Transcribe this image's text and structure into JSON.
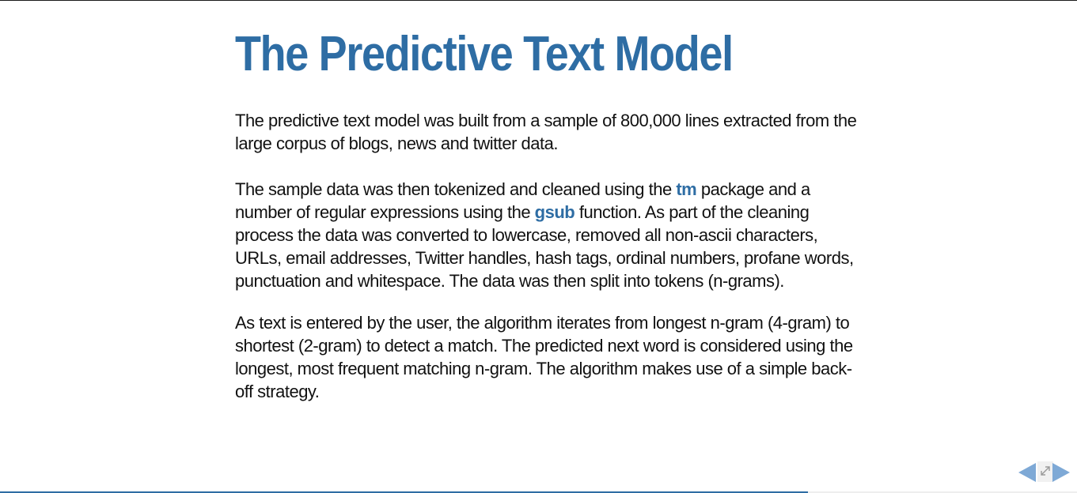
{
  "slide": {
    "title": "The Predictive Text Model",
    "paragraph_1": "The predictive text model was built from a sample of 800,000 lines extracted from the large corpus of blogs, news and twitter data.",
    "paragraph_2": {
      "text_a": "The sample data was then tokenized and cleaned using the ",
      "code_1": "tm",
      "text_b": " package and a number of regular expressions using the ",
      "code_2": "gsub",
      "text_c": " function. As part of the cleaning process the data was converted to lowercase, removed all non-ascii characters, URLs, email addresses, Twitter handles, hash tags, ordinal numbers, profane words, punctuation and whitespace. The data was then split into tokens (n-grams)."
    },
    "paragraph_3": "As text is entered by the user, the algorithm iterates from longest n-gram (4-gram) to shortest (2-gram) to detect a match. The predicted next word is considered using the longest, most frequent matching n-gram. The algorithm makes use of a simple back-off strategy."
  },
  "navigation": {
    "prev_icon": "triangle-left-icon",
    "fullscreen_icon": "expand-arrows-icon",
    "next_icon": "triangle-right-icon"
  },
  "progress": {
    "fraction": 0.75
  },
  "colors": {
    "accent": "#2e6da4",
    "nav_arrow": "#7ea9d6",
    "text": "#111111"
  }
}
